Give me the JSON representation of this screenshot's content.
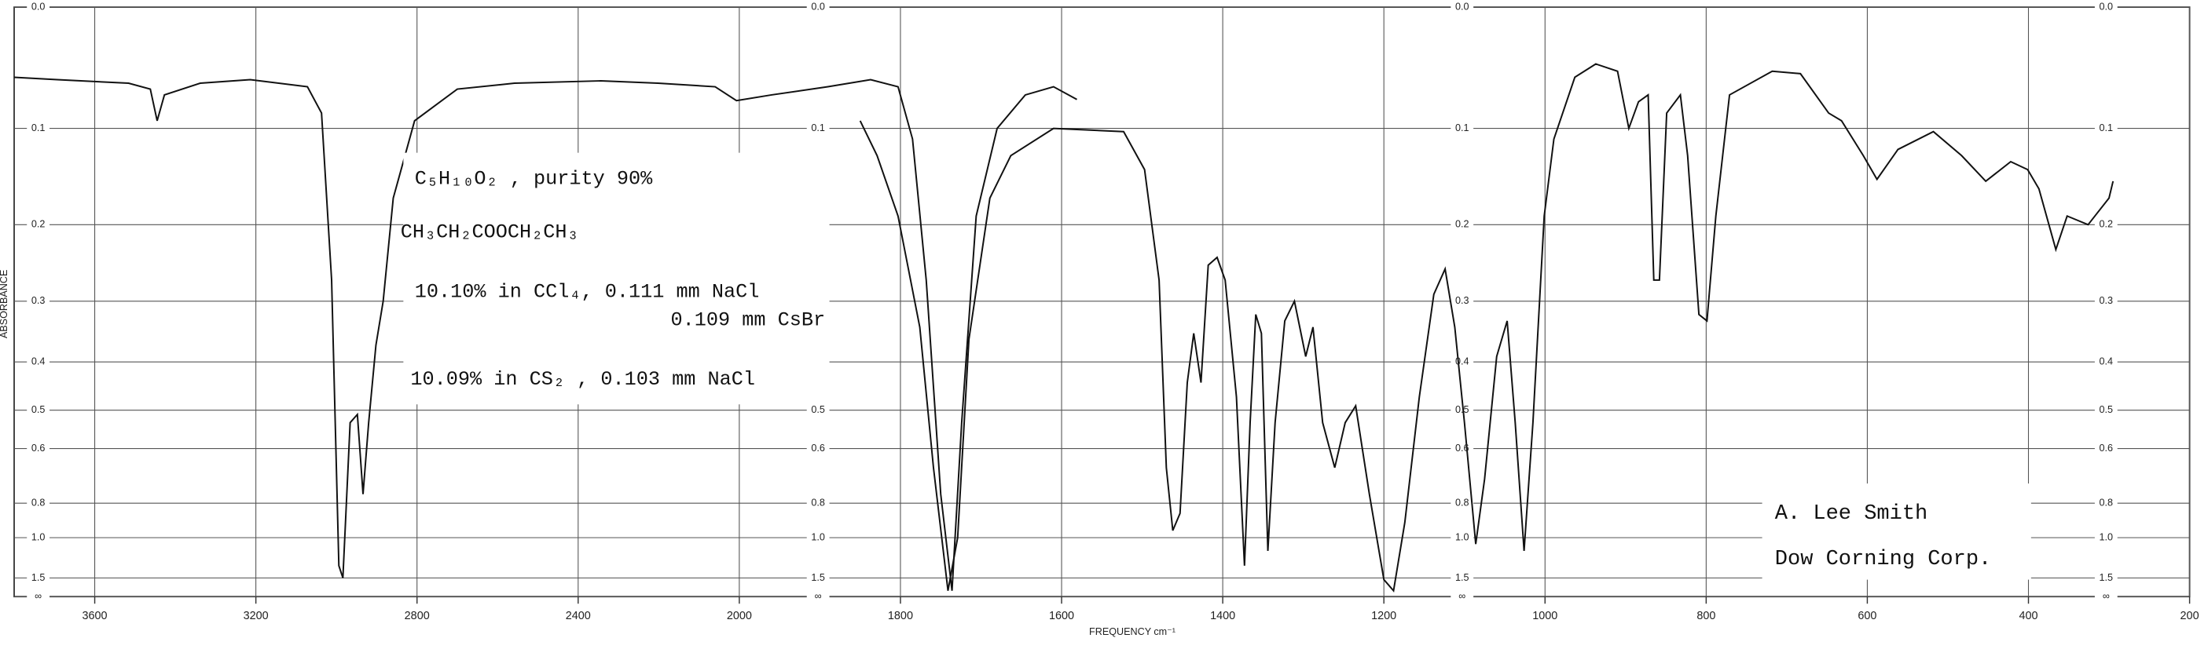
{
  "chart_data": {
    "type": "line",
    "x_label": "FREQUENCY cm⁻¹",
    "y_label": "ABSORBANCE",
    "y_scale": "absorbance",
    "x_scale_break": 2000,
    "xlim": [
      3800,
      200
    ],
    "ylim": [
      0,
      null
    ],
    "xticks": [
      3600,
      3200,
      2800,
      2400,
      2000,
      1800,
      1600,
      1400,
      1200,
      1000,
      800,
      600,
      400,
      200
    ],
    "yticks": [
      {
        "value": 0,
        "label": "0.0"
      },
      0.1,
      0.2,
      0.3,
      0.4,
      0.5,
      0.6,
      0.8,
      {
        "value": 1,
        "label": "1.0"
      },
      1.5,
      {
        "value": null,
        "label": "∞"
      }
    ],
    "grid": true,
    "annotations": [
      "C₅H₁₀O₂ , purity 90%",
      "CH₃CH₂COOCH₂CH₃",
      "10.10% in CCl₄, 0.111 mm NaCl",
      "0.109 mm CsBr",
      "10.09% in CS₂ , 0.103 mm NaCl"
    ],
    "signature": [
      "A. Lee Smith",
      "Dow Corning Corp."
    ],
    "series": [
      {
        "color": "#111111",
        "x": [
          3800,
          3693,
          3516,
          3462,
          3445,
          3427,
          3338,
          3214,
          3072,
          3037,
          3012,
          2994,
          2984,
          2966,
          2948,
          2934,
          2920,
          2902,
          2884,
          2859,
          2806,
          2700,
          2558,
          2344,
          2202,
          2060,
          2007,
          1960,
          1890,
          1837,
          1803,
          1785,
          1768,
          1750,
          1736,
          1724,
          1706,
          1680,
          1645,
          1610,
          1581
        ],
        "values": [
          0.055,
          0.057,
          0.06,
          0.065,
          0.093,
          0.07,
          0.06,
          0.057,
          0.063,
          0.086,
          0.27,
          1.28,
          1.5,
          0.53,
          0.51,
          0.76,
          0.53,
          0.37,
          0.3,
          0.17,
          0.093,
          0.065,
          0.06,
          0.058,
          0.06,
          0.063,
          0.075,
          0.07,
          0.063,
          0.057,
          0.063,
          0.11,
          0.27,
          0.76,
          2.0,
          0.53,
          0.19,
          0.1,
          0.07,
          0.063,
          0.074
        ]
      },
      {
        "color": "#111111",
        "x": [
          1850,
          1829,
          1803,
          1776,
          1759,
          1741,
          1729,
          1715,
          1689,
          1663,
          1610,
          1523,
          1497,
          1479,
          1470,
          1462,
          1453,
          1444,
          1436,
          1427,
          1418,
          1407,
          1397,
          1383,
          1373,
          1366,
          1359,
          1352,
          1344,
          1335,
          1323,
          1311,
          1297,
          1288,
          1276,
          1261,
          1248,
          1235,
          1218,
          1200,
          1188,
          1174,
          1156,
          1138,
          1124,
          1112,
          1100,
          1086,
          1075,
          1060,
          1047,
          1037,
          1026,
          1015,
          1001,
          989,
          963,
          937,
          910,
          896,
          884,
          872,
          865,
          858,
          849,
          832,
          823,
          809,
          799,
          788,
          771,
          718,
          683,
          648,
          632,
          605,
          588,
          562,
          518,
          483,
          453,
          422,
          401,
          387,
          366,
          352,
          326,
          300,
          295
        ],
        "values": [
          0.093,
          0.126,
          0.19,
          0.34,
          0.66,
          2.0,
          1.0,
          0.36,
          0.17,
          0.126,
          0.1,
          0.103,
          0.14,
          0.27,
          0.66,
          0.95,
          0.85,
          0.44,
          0.35,
          0.44,
          0.25,
          0.24,
          0.27,
          0.47,
          1.28,
          0.53,
          0.32,
          0.35,
          1.11,
          0.53,
          0.33,
          0.3,
          0.39,
          0.34,
          0.53,
          0.66,
          0.53,
          0.49,
          0.76,
          1.54,
          2.0,
          0.9,
          0.47,
          0.29,
          0.255,
          0.34,
          0.53,
          1.05,
          0.7,
          0.39,
          0.33,
          0.53,
          1.11,
          0.53,
          0.19,
          0.11,
          0.055,
          0.044,
          0.05,
          0.1,
          0.076,
          0.07,
          0.27,
          0.27,
          0.086,
          0.07,
          0.126,
          0.32,
          0.33,
          0.19,
          0.07,
          0.05,
          0.052,
          0.086,
          0.093,
          0.126,
          0.15,
          0.12,
          0.103,
          0.126,
          0.152,
          0.132,
          0.14,
          0.16,
          0.23,
          0.19,
          0.2,
          0.17,
          0.152
        ]
      }
    ]
  }
}
